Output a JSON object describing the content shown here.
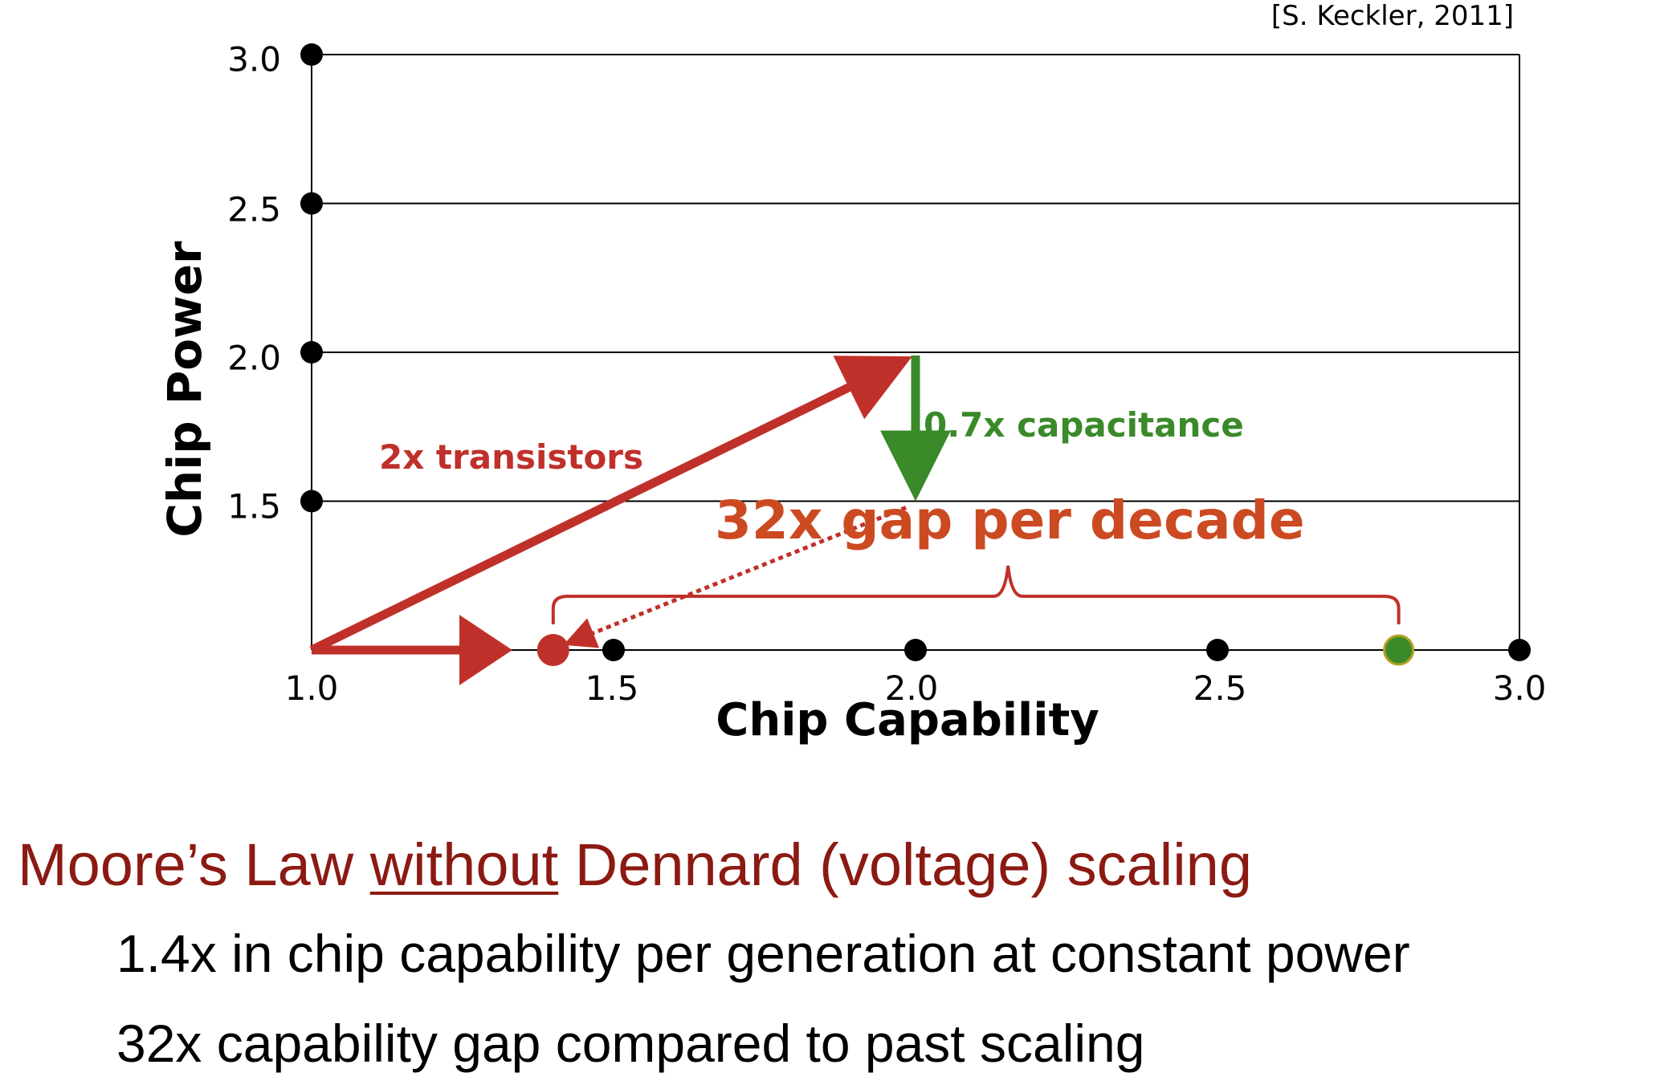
{
  "citation": "[S. Keckler, 2011]",
  "chart_data": {
    "type": "line",
    "title": "",
    "xlabel": "Chip Capability",
    "ylabel": "Chip Power",
    "xlim": [
      1.0,
      3.0
    ],
    "ylim": [
      1.0,
      3.0
    ],
    "x_ticks": [
      1.0,
      1.5,
      2.0,
      2.5,
      3.0
    ],
    "x_tick_labels": [
      "1.0",
      "1.5",
      "2.0",
      "2.5",
      "3.0"
    ],
    "y_ticks": [
      1.5,
      2.0,
      2.5,
      3.0
    ],
    "y_tick_labels": [
      "1.5",
      "2.0",
      "2.5",
      "3.0"
    ],
    "grid": "horizontal",
    "points": [
      {
        "x": 1.4,
        "y": 1.0,
        "color": "#c0302a"
      },
      {
        "x": 2.8,
        "y": 1.0,
        "color": "#3a8a2a"
      }
    ],
    "arrows": [
      {
        "from": [
          1.0,
          1.0
        ],
        "to": [
          2.0,
          2.0
        ],
        "color": "#c0302a",
        "label": "2x transistors"
      },
      {
        "from": [
          2.0,
          2.0
        ],
        "to": [
          2.0,
          1.5
        ],
        "color": "#3a8a2a",
        "label": "0.7x capacitance"
      },
      {
        "from": [
          1.0,
          1.0
        ],
        "to": [
          1.4,
          1.0
        ],
        "color": "#c0302a"
      },
      {
        "from": [
          2.0,
          1.5
        ],
        "to": [
          1.4,
          1.0
        ],
        "color": "#c0302a",
        "style": "dotted"
      }
    ],
    "brace": {
      "from": 1.4,
      "to": 2.8,
      "label": "32x gap per decade"
    },
    "annotations": {
      "transistors": "2x transistors",
      "capacitance": "0.7x capacitance",
      "gap": "32x gap per decade"
    },
    "colors": {
      "red": "#c0302a",
      "green": "#3a8a2a",
      "orange": "#cc4a22"
    }
  },
  "slide": {
    "heading_before": "Moore’s Law ",
    "heading_underlined": "without",
    "heading_after": " Dennard (voltage) scaling",
    "bullets": [
      "1.4x in chip capability per generation at constant power",
      "32x capability gap compared to past scaling"
    ]
  }
}
